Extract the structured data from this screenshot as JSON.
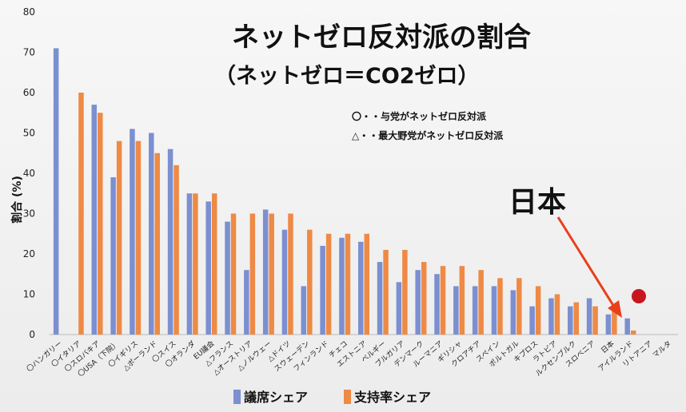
{
  "title": "ネットゼロ反対派の割合",
  "subtitle": "（ネットゼロ＝CO2ゼロ）",
  "notes": [
    "〇・・与党がネットゼロ反対派",
    "△・・最大野党がネットゼロ反対派"
  ],
  "annotation": "日本",
  "colors": {
    "seats": "#7b8fd1",
    "support": "#ee8a45",
    "arrow": "#e8401c",
    "dot": "#c8161e"
  },
  "chart_data": {
    "type": "bar",
    "ylabel": "割合 (%)",
    "ylim": [
      0,
      80
    ],
    "yticks": [
      0,
      10,
      20,
      30,
      40,
      50,
      60,
      70,
      80
    ],
    "grid": false,
    "legend_position": "bottom",
    "categories": [
      "〇ハンガリー",
      "〇イタリア",
      "〇スロバキア",
      "〇USA（下院）",
      "〇イギリス",
      "△ポーランド",
      "〇スイス",
      "〇オランダ",
      "EU議会",
      "△フランス",
      "△オーストリア",
      "△ノルウェー",
      "△ドイツ",
      "スウェーデン",
      "フィンランド",
      "チェコ",
      "エストニア",
      "ベルギー",
      "ブルガリア",
      "デンマーク",
      "ルーマニア",
      "ギリシャ",
      "クロアチア",
      "スペイン",
      "ポルトガル",
      "キプロス",
      "ラトビア",
      "ルクセンブルク",
      "スロベニア",
      "日本",
      "アイルランド",
      "リトアニア",
      "マルタ"
    ],
    "series": [
      {
        "name": "議席シェア",
        "values": [
          71,
          0,
          57,
          39,
          51,
          50,
          46,
          35,
          33,
          28,
          16,
          31,
          26,
          12,
          22,
          24,
          23,
          18,
          13,
          16,
          15,
          12,
          12,
          12,
          11,
          7,
          9,
          7,
          9,
          5,
          4,
          0,
          0
        ]
      },
      {
        "name": "支持率シェア",
        "values": [
          0,
          60,
          55,
          48,
          48,
          45,
          42,
          35,
          35,
          30,
          30,
          30,
          30,
          26,
          25,
          25,
          25,
          21,
          21,
          18,
          17,
          17,
          16,
          14,
          14,
          12,
          10,
          8,
          7,
          6,
          1,
          0,
          0
        ]
      }
    ]
  }
}
